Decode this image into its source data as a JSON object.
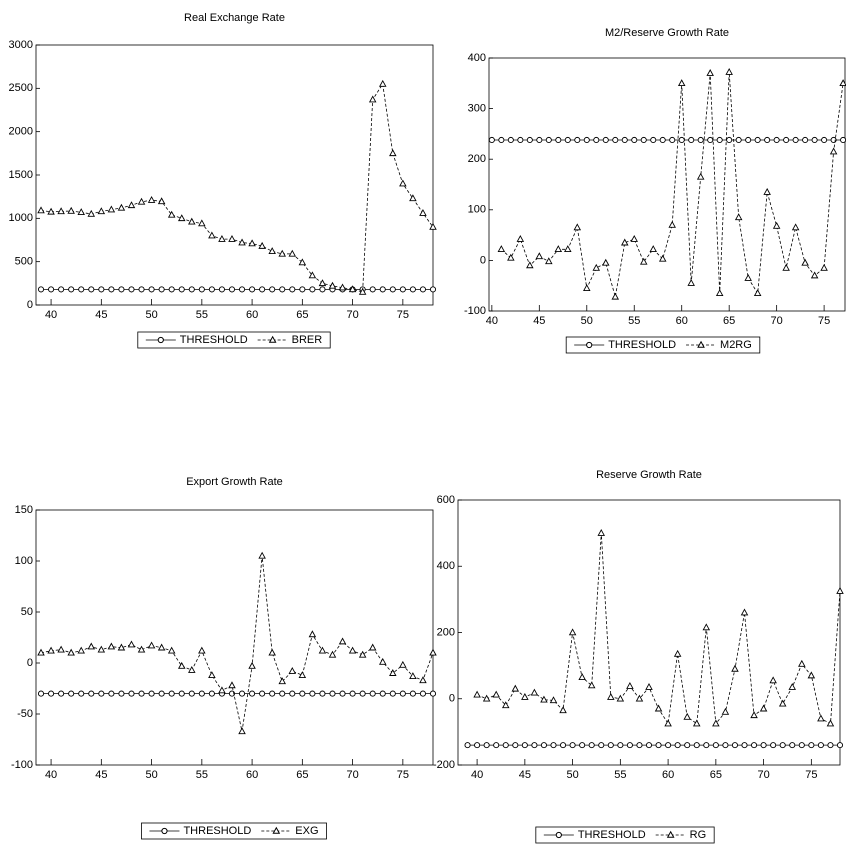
{
  "chart_data": [
    {
      "type": "line",
      "title": "Real Exchange Rate",
      "x": [
        39,
        40,
        41,
        42,
        43,
        44,
        45,
        46,
        47,
        48,
        49,
        50,
        51,
        52,
        53,
        54,
        55,
        56,
        57,
        58,
        59,
        60,
        61,
        62,
        63,
        64,
        65,
        66,
        67,
        68,
        69,
        70,
        71,
        72,
        73,
        74,
        75,
        76,
        77,
        78
      ],
      "series": [
        {
          "name": "THRESHOLD",
          "color": "#000000",
          "marker": "circle",
          "dashed": false,
          "values": [
            180,
            180,
            180,
            180,
            180,
            180,
            180,
            180,
            180,
            180,
            180,
            180,
            180,
            180,
            180,
            180,
            180,
            180,
            180,
            180,
            180,
            180,
            180,
            180,
            180,
            180,
            180,
            180,
            180,
            180,
            180,
            180,
            180,
            180,
            180,
            180,
            180,
            180,
            180,
            180
          ]
        },
        {
          "name": "BRER",
          "color": "#000000",
          "marker": "triangle",
          "dashed": true,
          "values": [
            1090,
            1075,
            1080,
            1085,
            1070,
            1050,
            1080,
            1100,
            1120,
            1150,
            1190,
            1210,
            1195,
            1040,
            1000,
            960,
            940,
            800,
            760,
            760,
            720,
            710,
            680,
            620,
            590,
            590,
            490,
            340,
            250,
            220,
            200,
            180,
            150,
            2370,
            2550,
            1750,
            1400,
            1230,
            1060,
            900
          ]
        }
      ],
      "xlim": [
        38.5,
        78
      ],
      "ylim": [
        0,
        3000
      ],
      "xticks": [
        40,
        45,
        50,
        55,
        60,
        65,
        70,
        75
      ],
      "yticks": [
        0,
        500,
        1000,
        1500,
        2000,
        2500,
        3000
      ]
    },
    {
      "type": "line",
      "title": "M2/Reserve Growth Rate",
      "x": [
        40,
        41,
        42,
        43,
        44,
        45,
        46,
        47,
        48,
        49,
        50,
        51,
        52,
        53,
        54,
        55,
        56,
        57,
        58,
        59,
        60,
        61,
        62,
        63,
        64,
        65,
        66,
        67,
        68,
        69,
        70,
        71,
        72,
        73,
        74,
        75,
        76,
        77
      ],
      "series": [
        {
          "name": "THRESHOLD",
          "color": "#000000",
          "marker": "circle",
          "dashed": false,
          "values": [
            238,
            238,
            238,
            238,
            238,
            238,
            238,
            238,
            238,
            238,
            238,
            238,
            238,
            238,
            238,
            238,
            238,
            238,
            238,
            238,
            238,
            238,
            238,
            238,
            238,
            238,
            238,
            238,
            238,
            238,
            238,
            238,
            238,
            238,
            238,
            238,
            238,
            238
          ]
        },
        {
          "name": "M2RG",
          "color": "#000000",
          "marker": "triangle",
          "dashed": true,
          "values": [
            null,
            22,
            5,
            42,
            -10,
            8,
            -2,
            22,
            22,
            65,
            -55,
            -15,
            -5,
            -72,
            35,
            42,
            -3,
            22,
            3,
            70,
            350,
            -45,
            165,
            370,
            -65,
            372,
            85,
            -35,
            -65,
            135,
            68,
            -15,
            65,
            -5,
            -30,
            -15,
            215,
            350
          ]
        }
      ],
      "xlim": [
        39.7,
        77.2
      ],
      "ylim": [
        -100,
        400
      ],
      "xticks": [
        40,
        45,
        50,
        55,
        60,
        65,
        70,
        75
      ],
      "yticks": [
        -100,
        0,
        100,
        200,
        300,
        400
      ]
    },
    {
      "type": "line",
      "title": "Export Growth Rate",
      "x": [
        39,
        40,
        41,
        42,
        43,
        44,
        45,
        46,
        47,
        48,
        49,
        50,
        51,
        52,
        53,
        54,
        55,
        56,
        57,
        58,
        59,
        60,
        61,
        62,
        63,
        64,
        65,
        66,
        67,
        68,
        69,
        70,
        71,
        72,
        73,
        74,
        75,
        76,
        77,
        78
      ],
      "series": [
        {
          "name": "THRESHOLD",
          "color": "#000000",
          "marker": "circle",
          "dashed": false,
          "values": [
            -30,
            -30,
            -30,
            -30,
            -30,
            -30,
            -30,
            -30,
            -30,
            -30,
            -30,
            -30,
            -30,
            -30,
            -30,
            -30,
            -30,
            -30,
            -30,
            -30,
            -30,
            -30,
            -30,
            -30,
            -30,
            -30,
            -30,
            -30,
            -30,
            -30,
            -30,
            -30,
            -30,
            -30,
            -30,
            -30,
            -30,
            -30,
            -30,
            -30
          ]
        },
        {
          "name": "EXG",
          "color": "#000000",
          "marker": "triangle",
          "dashed": true,
          "values": [
            10,
            12,
            13,
            10,
            12,
            16,
            13,
            16,
            15,
            18,
            13,
            17,
            15,
            12,
            -3,
            -7,
            12,
            -12,
            -27,
            -22,
            -67,
            -3,
            105,
            10,
            -18,
            -8,
            -12,
            28,
            12,
            8,
            21,
            12,
            8,
            15,
            1,
            -10,
            -2,
            -13,
            -17,
            10
          ]
        }
      ],
      "xlim": [
        38.5,
        78
      ],
      "ylim": [
        -100,
        150
      ],
      "xticks": [
        40,
        45,
        50,
        55,
        60,
        65,
        70,
        75
      ],
      "yticks": [
        -100,
        -50,
        0,
        50,
        100,
        150
      ]
    },
    {
      "type": "line",
      "title": "Reserve Growth Rate",
      "x": [
        39,
        40,
        41,
        42,
        43,
        44,
        45,
        46,
        47,
        48,
        49,
        50,
        51,
        52,
        53,
        54,
        55,
        56,
        57,
        58,
        59,
        60,
        61,
        62,
        63,
        64,
        65,
        66,
        67,
        68,
        69,
        70,
        71,
        72,
        73,
        74,
        75,
        76,
        77,
        78
      ],
      "series": [
        {
          "name": "THRESHOLD",
          "color": "#000000",
          "marker": "circle",
          "dashed": false,
          "values": [
            -140,
            -140,
            -140,
            -140,
            -140,
            -140,
            -140,
            -140,
            -140,
            -140,
            -140,
            -140,
            -140,
            -140,
            -140,
            -140,
            -140,
            -140,
            -140,
            -140,
            -140,
            -140,
            -140,
            -140,
            -140,
            -140,
            -140,
            -140,
            -140,
            -140,
            -140,
            -140,
            -140,
            -140,
            -140,
            -140,
            -140,
            -140,
            -140,
            -140
          ]
        },
        {
          "name": "RG",
          "color": "#000000",
          "marker": "triangle",
          "dashed": true,
          "values": [
            null,
            12,
            0,
            12,
            -20,
            30,
            5,
            18,
            -3,
            -5,
            -35,
            200,
            65,
            40,
            500,
            5,
            0,
            38,
            0,
            35,
            -30,
            -75,
            135,
            -55,
            -75,
            215,
            -75,
            -40,
            90,
            260,
            -50,
            -30,
            55,
            -15,
            35,
            105,
            70,
            -60,
            -75,
            325
          ]
        }
      ],
      "xlim": [
        38,
        78
      ],
      "ylim": [
        -200,
        600
      ],
      "xticks": [
        40,
        45,
        50,
        55,
        60,
        65,
        70,
        75
      ],
      "yticks": [
        -200,
        0,
        200,
        400,
        600
      ]
    }
  ]
}
